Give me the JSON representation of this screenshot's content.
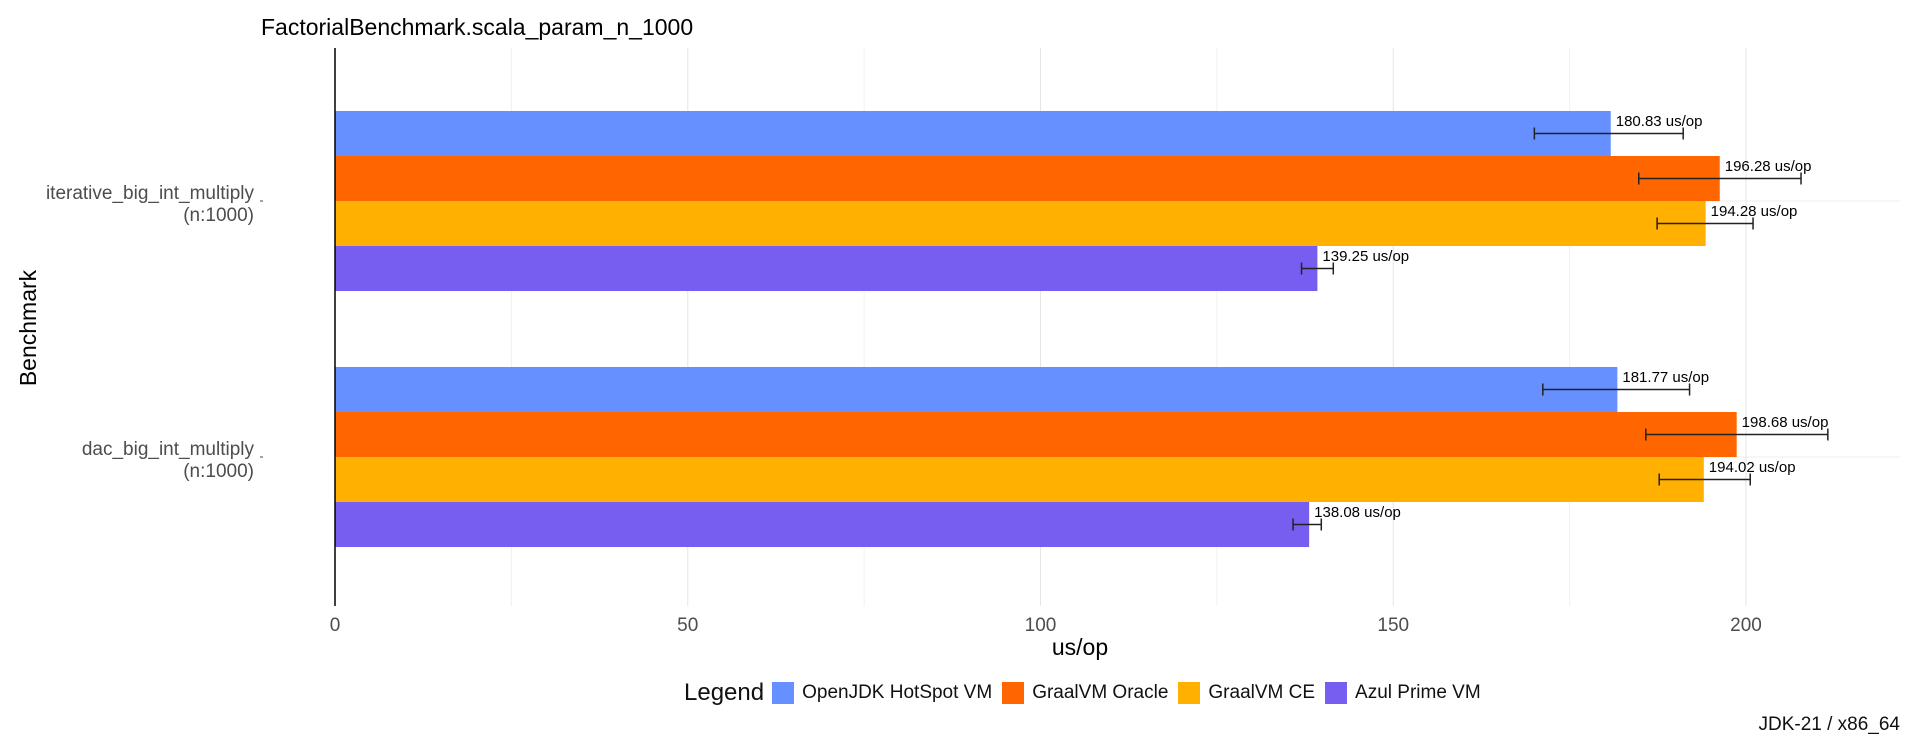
{
  "chart_data": {
    "type": "bar",
    "orientation": "horizontal",
    "title": "FactorialBenchmark.scala_param_n_1000",
    "xlabel": "us/op",
    "ylabel": "Benchmark",
    "xlim": [
      0,
      222
    ],
    "xticks": [
      0,
      50,
      100,
      150,
      200
    ],
    "grid": true,
    "categories": [
      {
        "line1": "iterative_big_int_multiply",
        "line2": "(n:1000)"
      },
      {
        "line1": "dac_big_int_multiply",
        "line2": "(n:1000)"
      }
    ],
    "series": [
      {
        "name": "OpenJDK HotSpot VM",
        "color": "#6690FF",
        "values": [
          180.83,
          181.77
        ],
        "labels": [
          "180.83 us/op",
          "181.77 us/op"
        ],
        "error_low": [
          170.0,
          171.2
        ],
        "error_high": [
          191.1,
          192.0
        ]
      },
      {
        "name": "GraalVM Oracle",
        "color": "#FF6600",
        "values": [
          196.28,
          198.68
        ],
        "labels": [
          "196.28 us/op",
          "198.68 us/op"
        ],
        "error_low": [
          184.8,
          185.8
        ],
        "error_high": [
          207.8,
          211.6
        ]
      },
      {
        "name": "GraalVM CE",
        "color": "#FFB000",
        "values": [
          194.28,
          194.02
        ],
        "labels": [
          "194.28 us/op",
          "194.02 us/op"
        ],
        "error_low": [
          187.4,
          187.7
        ],
        "error_high": [
          201.0,
          200.6
        ]
      },
      {
        "name": "Azul Prime VM",
        "color": "#785EF0",
        "values": [
          139.25,
          138.08
        ],
        "labels": [
          "139.25 us/op",
          "138.08 us/op"
        ],
        "error_low": [
          137.0,
          135.8
        ],
        "error_high": [
          141.5,
          139.8
        ]
      }
    ],
    "legend_title": "Legend",
    "legend_position": "bottom",
    "caption": "JDK-21 / x86_64"
  }
}
